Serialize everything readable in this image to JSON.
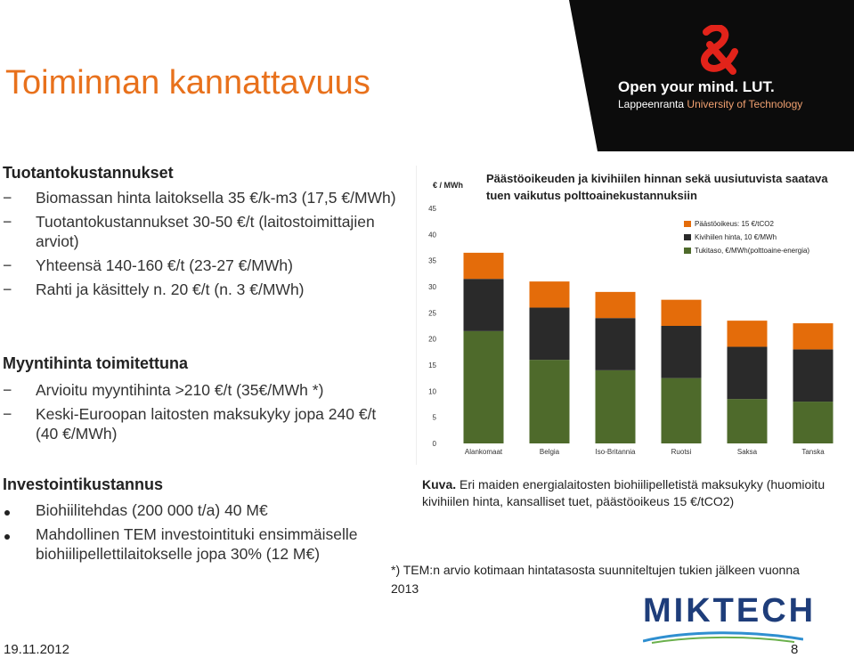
{
  "slide": {
    "title": "Toiminnan kannattavuus",
    "date": "19.11.2012",
    "page": "8"
  },
  "logo": {
    "line1": "Open your mind. LUT.",
    "line2_a": "Lappeenranta ",
    "line2_b": "University of Technology"
  },
  "sections": {
    "production": {
      "heading": "Tuotantokustannukset",
      "items": [
        "Biomassan hinta laitoksella 35 €/k-m3 (17,5 €/MWh)",
        "Tuotantokustannukset 30-50 €/t (laitostoimittajien arviot)",
        "Yhteensä 140-160 €/t (23-27 €/MWh)",
        "Rahti ja käsittely n. 20 €/t (n. 3 €/MWh)"
      ]
    },
    "sales": {
      "heading": "Myyntihinta toimitettuna",
      "items": [
        "Arvioitu myyntihinta >210 €/t (35€/MWh *)",
        "Keski-Euroopan laitosten maksukyky jopa 240 €/t (40 €/MWh)"
      ]
    },
    "investment": {
      "heading": "Investointikustannus",
      "items": [
        "Biohiilitehdas (200 000 t/a) 40 M€",
        "Mahdollinen TEM investointituki ensimmäiselle biohiilipellettilaitokselle jopa 30% (12 M€)"
      ]
    }
  },
  "caption": {
    "label": "Kuva.",
    "text": " Eri maiden energialaitosten biohiilipelletistä maksukyky (huomioitu kivihiilen hinta, kansalliset tuet, päästöoikeus 15 €/tCO2)"
  },
  "note": "*) TEM:n arvio kotimaan hintatasosta  suunniteltujen tukien jälkeen vuonna 2013",
  "partner_logo": "MIKTECH",
  "colors": {
    "title": "#e8711c",
    "tuki": "#4e6a2b",
    "kivihiili": "#2a2a2a",
    "paasto": "#e46c0a"
  },
  "chart_data": {
    "type": "bar",
    "stacked": true,
    "title": "Päästöoikeuden ja kivihiilen hinnan sekä uusiutuvista saatava tuen vaikutus polttoainekustannuksiin",
    "ylabel": "€ / MWh",
    "ylim": [
      0,
      45
    ],
    "yticks": [
      0,
      5,
      10,
      15,
      20,
      25,
      30,
      35,
      40,
      45
    ],
    "grid": false,
    "legend": "top-right",
    "categories": [
      "Alankomaat",
      "Belgia",
      "Iso-Britannia",
      "Ruotsi",
      "Saksa",
      "Tanska"
    ],
    "series": [
      {
        "name": "Tukitaso, €/MWh(polttoaine-energia)",
        "values": [
          21.5,
          16.0,
          14.0,
          12.5,
          8.5,
          8.0
        ],
        "color": "#4e6a2b"
      },
      {
        "name": "Kivihiilen hinta, 10 €/MWh",
        "values": [
          10.0,
          10.0,
          10.0,
          10.0,
          10.0,
          10.0
        ],
        "color": "#2a2a2a"
      },
      {
        "name": "Päästöoikeus: 15 €/tCO2",
        "values": [
          5.0,
          5.0,
          5.0,
          5.0,
          5.0,
          5.0
        ],
        "color": "#e46c0a"
      }
    ]
  }
}
